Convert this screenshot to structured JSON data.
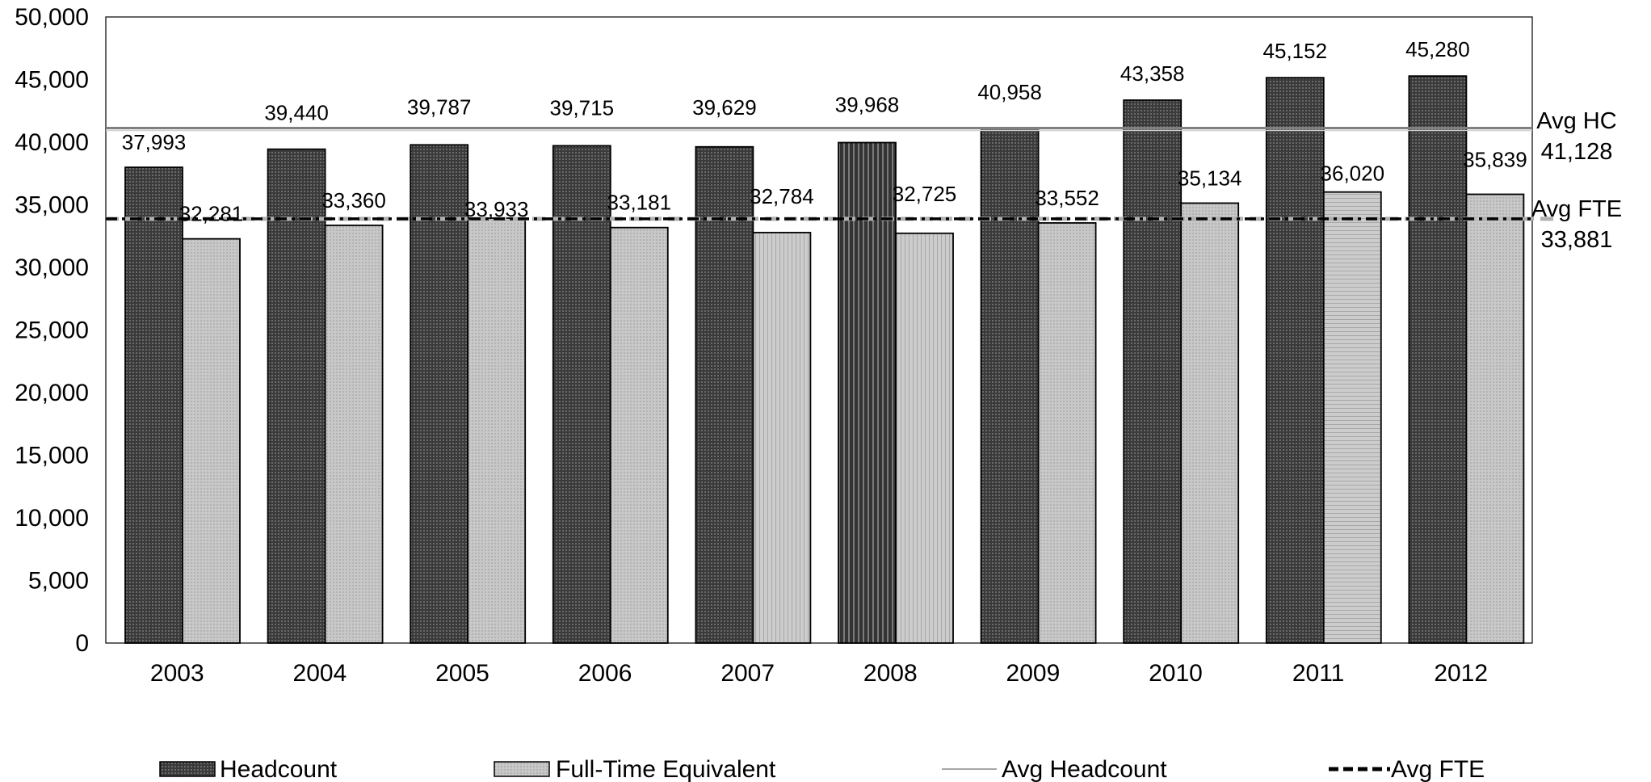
{
  "chart_data": {
    "type": "bar",
    "categories": [
      "2003",
      "2004",
      "2005",
      "2006",
      "2007",
      "2008",
      "2009",
      "2010",
      "2011",
      "2012"
    ],
    "series": [
      {
        "name": "Headcount",
        "values": [
          37993,
          39440,
          39787,
          39715,
          39629,
          39968,
          40958,
          43358,
          45152,
          45280
        ]
      },
      {
        "name": "Full-Time Equivalent",
        "values": [
          32281,
          33360,
          33933,
          33181,
          32784,
          32725,
          33552,
          35134,
          36020,
          35839
        ]
      }
    ],
    "data_labels": {
      "headcount": [
        "37,993",
        "39,440",
        "39,787",
        "39,715",
        "39,629",
        "39,968",
        "40,958",
        "43,358",
        "45,152",
        "45,280"
      ],
      "fte": [
        "32,281",
        "33,360",
        "33,933",
        "33,181",
        "32,784",
        "32,725",
        "33,552",
        "35,134",
        "36,020",
        "35,839"
      ]
    },
    "reference_lines": [
      {
        "name": "Avg Headcount",
        "value": 41128,
        "label_line1": "Avg HC",
        "label_line2": "41,128",
        "style": "solid",
        "color": "#a6a6a6"
      },
      {
        "name": "Avg FTE",
        "value": 33881,
        "label_line1": "Avg FTE",
        "label_line2": "33,881",
        "style": "dashed",
        "color": "#000000"
      }
    ],
    "ylim": [
      0,
      50000
    ],
    "yticks": [
      "0",
      "5,000",
      "10,000",
      "15,000",
      "20,000",
      "25,000",
      "30,000",
      "35,000",
      "40,000",
      "45,000",
      "50,000"
    ],
    "xlabel": "",
    "ylabel": "",
    "title": "",
    "grid": false,
    "legend_position": "bottom",
    "legend": [
      "Headcount",
      "Full-Time Equivalent",
      "Avg Headcount",
      "Avg FTE"
    ],
    "colors": {
      "headcount": "#3c3c3c",
      "fte": "#c4c4c4",
      "avg_headcount": "#a6a6a6",
      "avg_fte": "#000000"
    }
  }
}
